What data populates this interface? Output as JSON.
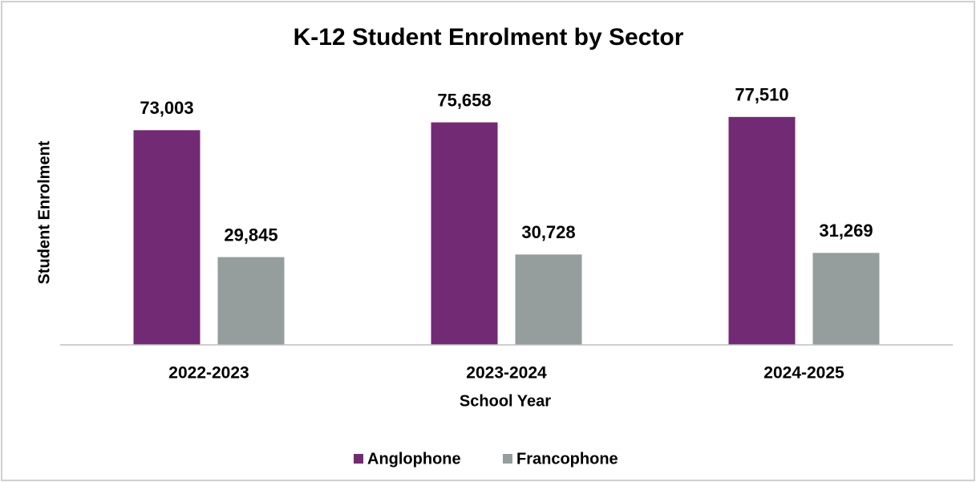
{
  "chart_data": {
    "type": "bar",
    "title": "K-12 Student Enrolment by Sector",
    "x_label": "School Year",
    "y_label": "Student Enrolment",
    "categories": [
      "2022-2023",
      "2023-2024",
      "2024-2025"
    ],
    "series": [
      {
        "name": "Anglophone",
        "color": "#722a74",
        "values": [
          73003,
          75658,
          77510
        ],
        "value_labels": [
          "73,003",
          "75,658",
          "77,510"
        ]
      },
      {
        "name": "Francophone",
        "color": "#969e9d",
        "values": [
          29845,
          30728,
          31269
        ],
        "value_labels": [
          "29,845",
          "30,728",
          "31,269"
        ]
      }
    ],
    "ylim": [
      0,
      90000
    ],
    "legend": "bottom"
  }
}
